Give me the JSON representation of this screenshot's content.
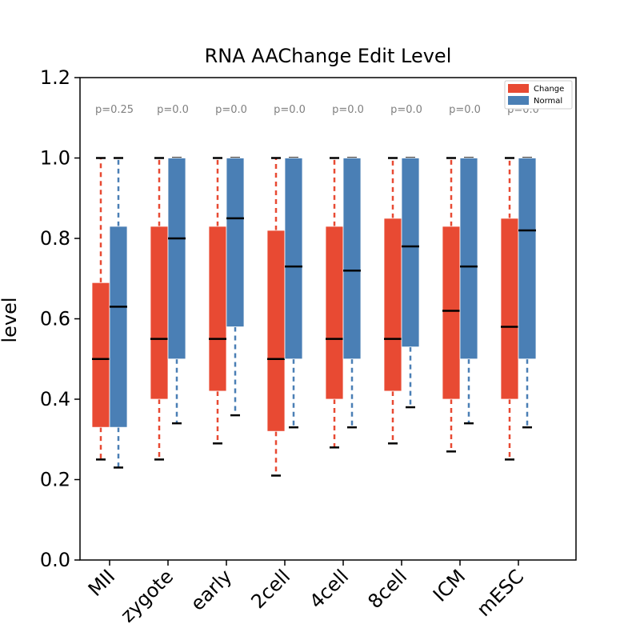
{
  "chart_data": {
    "type": "boxplot",
    "title": "RNA AAChange Edit Level",
    "xlabel": "",
    "ylabel": "level",
    "ylim": [
      0.0,
      1.2
    ],
    "yticks": [
      "0.0",
      "0.2",
      "0.4",
      "0.6",
      "0.8",
      "1.0",
      "1.2"
    ],
    "grid": false,
    "legend_position": "top-right",
    "categories": [
      "MII",
      "zygote",
      "early",
      "2cell",
      "4cell",
      "8cell",
      "ICM",
      "mESC"
    ],
    "pvalues": [
      "p=0.25",
      "p=0.0",
      "p=0.0",
      "p=0.0",
      "p=0.0",
      "p=0.0",
      "p=0.0",
      "p=0.0"
    ],
    "series": [
      {
        "name": "Change",
        "color": "#e84a33",
        "boxes": [
          {
            "whislo": 0.25,
            "q1": 0.33,
            "med": 0.5,
            "q3": 0.69,
            "whishi": 1.0
          },
          {
            "whislo": 0.25,
            "q1": 0.4,
            "med": 0.55,
            "q3": 0.83,
            "whishi": 1.0
          },
          {
            "whislo": 0.29,
            "q1": 0.42,
            "med": 0.55,
            "q3": 0.83,
            "whishi": 1.0
          },
          {
            "whislo": 0.21,
            "q1": 0.32,
            "med": 0.5,
            "q3": 0.82,
            "whishi": 1.0
          },
          {
            "whislo": 0.28,
            "q1": 0.4,
            "med": 0.55,
            "q3": 0.83,
            "whishi": 1.0
          },
          {
            "whislo": 0.29,
            "q1": 0.42,
            "med": 0.55,
            "q3": 0.85,
            "whishi": 1.0
          },
          {
            "whislo": 0.27,
            "q1": 0.4,
            "med": 0.62,
            "q3": 0.83,
            "whishi": 1.0
          },
          {
            "whislo": 0.25,
            "q1": 0.4,
            "med": 0.58,
            "q3": 0.85,
            "whishi": 1.0
          }
        ]
      },
      {
        "name": "Normal",
        "color": "#4a7fb5",
        "boxes": [
          {
            "whislo": 0.23,
            "q1": 0.33,
            "med": 0.63,
            "q3": 0.83,
            "whishi": 1.0
          },
          {
            "whislo": 0.34,
            "q1": 0.5,
            "med": 0.8,
            "q3": 1.0,
            "whishi": 1.0
          },
          {
            "whislo": 0.36,
            "q1": 0.58,
            "med": 0.85,
            "q3": 1.0,
            "whishi": 1.0
          },
          {
            "whislo": 0.33,
            "q1": 0.5,
            "med": 0.73,
            "q3": 1.0,
            "whishi": 1.0
          },
          {
            "whislo": 0.33,
            "q1": 0.5,
            "med": 0.72,
            "q3": 1.0,
            "whishi": 1.0
          },
          {
            "whislo": 0.38,
            "q1": 0.53,
            "med": 0.78,
            "q3": 1.0,
            "whishi": 1.0
          },
          {
            "whislo": 0.34,
            "q1": 0.5,
            "med": 0.73,
            "q3": 1.0,
            "whishi": 1.0
          },
          {
            "whislo": 0.33,
            "q1": 0.5,
            "med": 0.82,
            "q3": 1.0,
            "whishi": 1.0
          }
        ]
      }
    ]
  }
}
